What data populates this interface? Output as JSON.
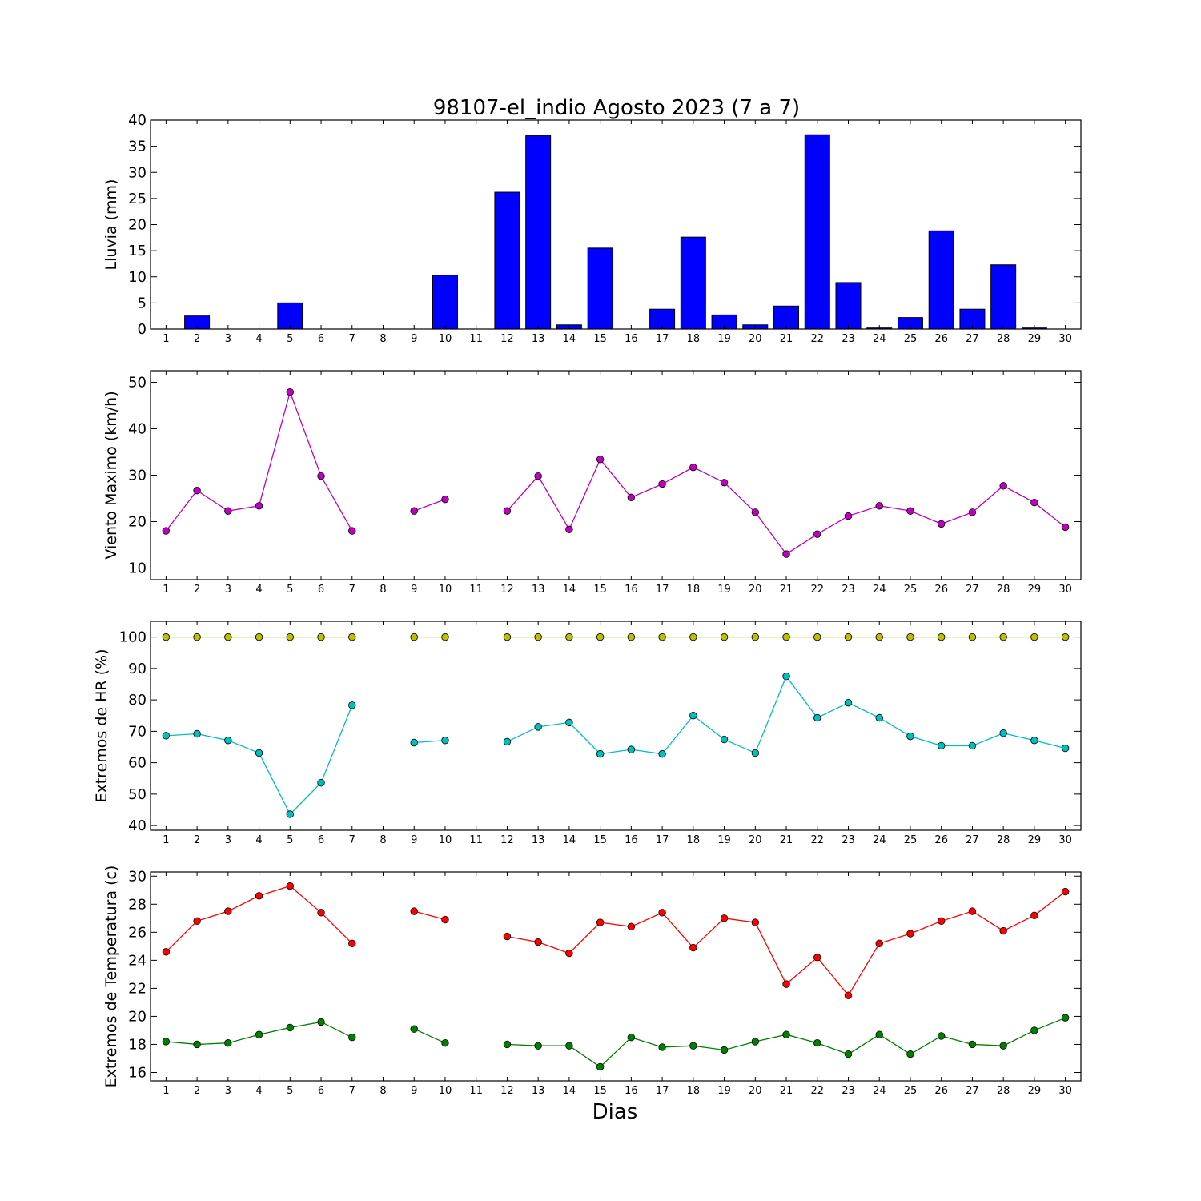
{
  "title": "98107-el_indio Agosto 2023  (7 a 7)",
  "xlabel": "Dias",
  "colors": {
    "rain_bar": "#0000ff",
    "wind": "#bf00bf",
    "hr_max": "#bfbf00",
    "hr_min": "#00bfbf",
    "temp_max": "#ff0000",
    "temp_min": "#008000"
  },
  "chart_data": [
    {
      "type": "bar",
      "ylabel": "Lluvia (mm)",
      "x": [
        1,
        2,
        3,
        4,
        5,
        6,
        7,
        8,
        9,
        10,
        11,
        12,
        13,
        14,
        15,
        16,
        17,
        18,
        19,
        20,
        21,
        22,
        23,
        24,
        25,
        26,
        27,
        28,
        29,
        30
      ],
      "ylim": [
        0,
        40
      ],
      "yticks": [
        0,
        5,
        10,
        15,
        20,
        25,
        30,
        35,
        40
      ],
      "series": [
        {
          "values": [
            0,
            2.5,
            0,
            0,
            5,
            0,
            0,
            0,
            0,
            10.3,
            0,
            26.2,
            37,
            0.8,
            15.5,
            0,
            3.8,
            17.6,
            2.7,
            0.8,
            4.4,
            37.2,
            8.9,
            0.2,
            2.2,
            18.8,
            3.8,
            12.3,
            0.2,
            0
          ]
        }
      ]
    },
    {
      "type": "line",
      "ylabel": "Viento Maximo (km/h)",
      "x": [
        1,
        2,
        3,
        4,
        5,
        6,
        7,
        8,
        9,
        10,
        11,
        12,
        13,
        14,
        15,
        16,
        17,
        18,
        19,
        20,
        21,
        22,
        23,
        24,
        25,
        26,
        27,
        28,
        29,
        30
      ],
      "ylim": [
        7.5,
        52.5
      ],
      "yticks": [
        10,
        20,
        30,
        40,
        50
      ],
      "series": [
        {
          "values": [
            18,
            26.7,
            22.3,
            23.4,
            47.9,
            29.8,
            18,
            null,
            22.3,
            24.8,
            null,
            22.3,
            29.8,
            18.3,
            33.4,
            25.2,
            28.1,
            31.7,
            28.4,
            22,
            13,
            17.3,
            21.2,
            23.4,
            22.3,
            19.5,
            22,
            27.7,
            24.1,
            18.8
          ]
        }
      ]
    },
    {
      "type": "line",
      "ylabel": "Extremos de HR (%)",
      "x": [
        1,
        2,
        3,
        4,
        5,
        6,
        7,
        8,
        9,
        10,
        11,
        12,
        13,
        14,
        15,
        16,
        17,
        18,
        19,
        20,
        21,
        22,
        23,
        24,
        25,
        26,
        27,
        28,
        29,
        30
      ],
      "ylim": [
        38.5,
        105
      ],
      "yticks": [
        40,
        50,
        60,
        70,
        80,
        90,
        100
      ],
      "series": [
        {
          "values": [
            100,
            100,
            100,
            100,
            100,
            100,
            100,
            null,
            100,
            100,
            null,
            100,
            100,
            100,
            100,
            100,
            100,
            100,
            100,
            100,
            100,
            100,
            100,
            100,
            100,
            100,
            100,
            100,
            100,
            100
          ]
        },
        {
          "values": [
            68.6,
            69.2,
            67.1,
            63.1,
            43.6,
            53.6,
            78.3,
            null,
            66.4,
            67.1,
            null,
            66.7,
            71.4,
            72.8,
            62.8,
            64.2,
            62.8,
            75,
            67.4,
            63.1,
            87.5,
            74.3,
            79.1,
            74.3,
            68.4,
            65.4,
            65.4,
            69.4,
            67.1,
            64.6
          ]
        }
      ]
    },
    {
      "type": "line",
      "ylabel": "Extremos de Temperatura (c)",
      "x": [
        1,
        2,
        3,
        4,
        5,
        6,
        7,
        8,
        9,
        10,
        11,
        12,
        13,
        14,
        15,
        16,
        17,
        18,
        19,
        20,
        21,
        22,
        23,
        24,
        25,
        26,
        27,
        28,
        29,
        30
      ],
      "ylim": [
        15.4,
        30.3
      ],
      "yticks": [
        16,
        18,
        20,
        22,
        24,
        26,
        28,
        30
      ],
      "series": [
        {
          "values": [
            24.6,
            26.8,
            27.5,
            28.6,
            29.3,
            27.4,
            25.2,
            null,
            27.5,
            26.9,
            null,
            25.7,
            25.3,
            24.5,
            26.7,
            26.4,
            27.4,
            24.9,
            27,
            26.7,
            22.3,
            24.2,
            21.5,
            25.2,
            25.9,
            26.8,
            27.5,
            26.1,
            27.2,
            28.9
          ]
        },
        {
          "values": [
            18.2,
            18,
            18.1,
            18.7,
            19.2,
            19.6,
            18.5,
            null,
            19.1,
            18.1,
            null,
            18,
            17.9,
            17.9,
            16.4,
            18.5,
            17.8,
            17.9,
            17.6,
            18.2,
            18.7,
            18.1,
            17.3,
            18.7,
            17.3,
            18.6,
            18,
            17.9,
            19,
            19.9
          ]
        }
      ]
    }
  ]
}
